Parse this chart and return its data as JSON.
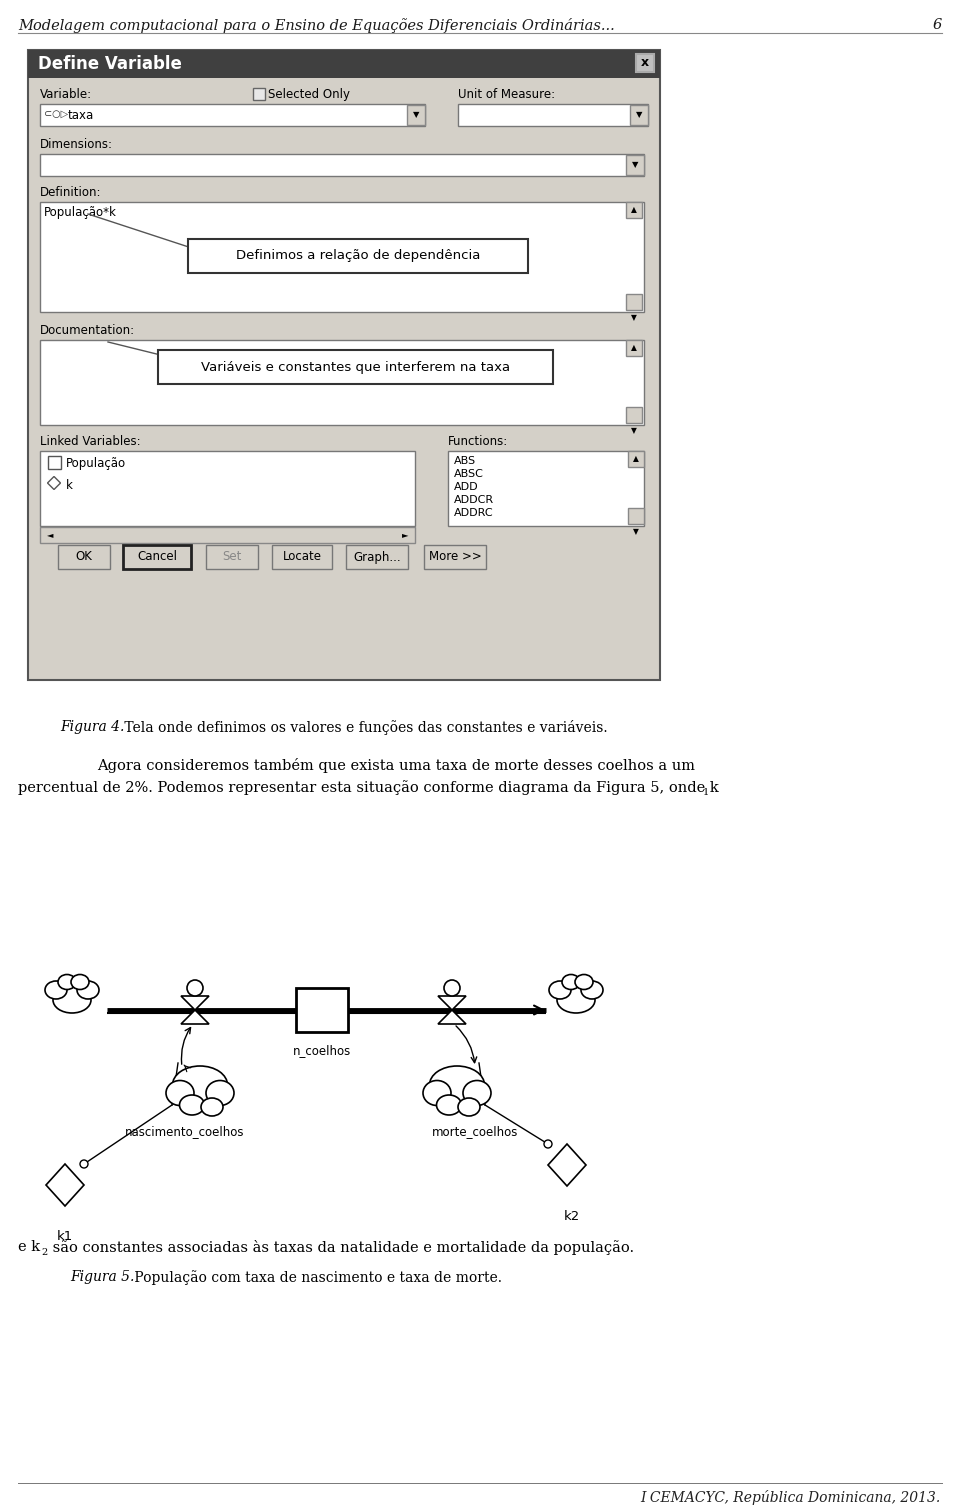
{
  "page_title": "Modelagem computacional para o Ensino de Equações Diferenciais Ordinárias...",
  "page_number": "6",
  "dialog_title": "Define Variable",
  "fig4_caption_italic": "Figura 4.",
  "fig4_caption_text": " Tela onde definimos os valores e funções das constantes e variáveis.",
  "para1": "Agora consideremos também que exista uma taxa de morte desses coelhos a um",
  "para2_a": "percentual de 2%. Podemos representar esta situação conforme diagrama da Figura 5, onde k",
  "para3_a": "e k",
  "para3_b": " são constantes associadas às taxas da natalidade e mortalidade da população.",
  "fig5_caption_italic": "Figura 5.",
  "fig5_caption_text": " População com taxa de nascimento e taxa de morte.",
  "footer": "I CEMACYC, República Dominicana, 2013.",
  "bg_color": "#ffffff",
  "dialog_bg": "#d4d0c8",
  "text_color": "#000000"
}
